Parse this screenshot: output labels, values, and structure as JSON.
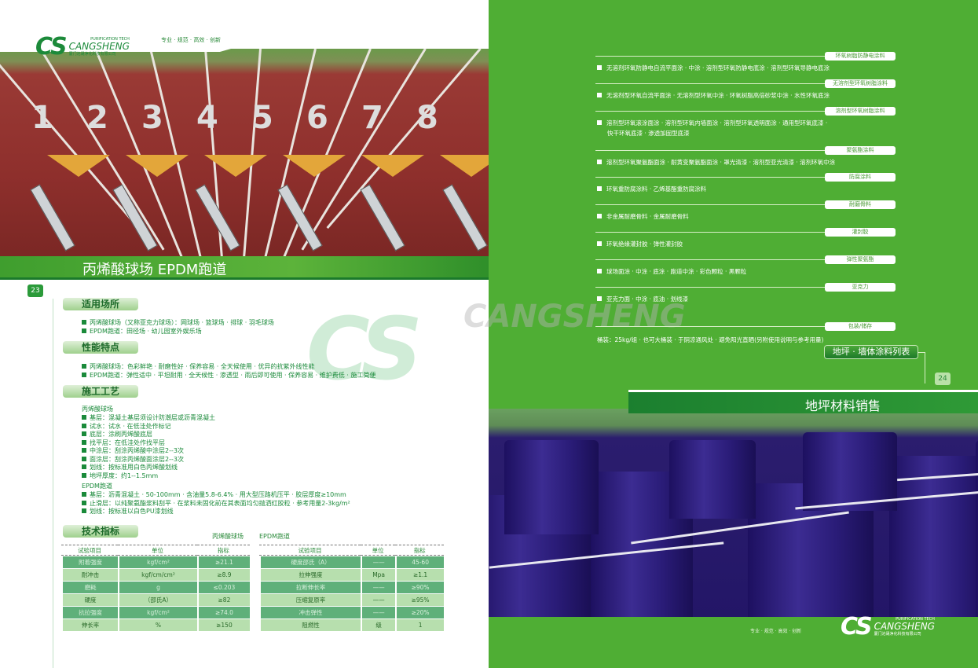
{
  "brand": {
    "logo_mark": "CS",
    "tagline": "PURIFICATION TECH",
    "name": "CANGSHENG",
    "company": "厦门沧晟净化科技有限公司",
    "slogan": "专业 · 规范 · 高效 · 创新"
  },
  "left": {
    "track_numbers": [
      "1",
      "2",
      "3",
      "4",
      "5",
      "6",
      "7",
      "8"
    ],
    "title": "丙烯酸球场 EPDM跑道",
    "page_number": "23",
    "sections": {
      "venues": {
        "title": "适用场所",
        "items": [
          "丙烯酸球场（又称亚克力球场）：网球场 · 篮球场 · 排球 · 羽毛球场",
          "EPDM跑道：田径场 · 幼儿园室外娱乐场"
        ]
      },
      "features": {
        "title": "性能特点",
        "items": [
          "丙烯酸球场：色彩鲜艳 · 耐磨性好 · 保养容易 · 全天候使用 · 优异的抗紫外线性能",
          "EPDM跑道：弹性适中 · 平坦耐用 · 全天候性 · 渗透型 · 雨后即可使用 · 保养容易 · 维护费低 · 施工简便"
        ]
      },
      "process": {
        "title": "施工工艺",
        "acrylic_heading": "丙烯酸球场",
        "acrylic_steps": [
          "基层：混凝土基层须设计防潮层或沥青混凝土",
          "试水：试水 · 在低洼处作标记",
          "底层：涂刷丙烯酸底层",
          "找平层：在低洼处作找平层",
          "中涂层：刮涂丙烯酸中涂层2--3次",
          "面涂层：刮涂丙烯酸面涂层2--3次",
          "划线：按标准用白色丙烯酸划线",
          "地坪厚度：约1--1.5mm"
        ],
        "epdm_heading": "EPDM跑道",
        "epdm_steps": [
          "基层：沥青混凝土 · 50-100mm · 含油量5.8-6.4% · 用大型压路机压平 · 胶层厚度≥10mm",
          "止滑层：以纯聚氨酯浆料刮平 · 在浆料未固化前在其表面均匀抛洒红胶粒 · 参考用量2-3kg/m²",
          "划线：按标准以白色PU漆划线"
        ]
      },
      "specs": {
        "title": "技术指标",
        "acrylic": {
          "caption": "丙烯酸球场",
          "headers": [
            "试验项目",
            "单位",
            "指标"
          ],
          "rows": [
            [
              "附着强度",
              "kgf/cm²",
              "≥21.1"
            ],
            [
              "耐冲击",
              "kgf/cm/cm²",
              "≥8.9"
            ],
            [
              "磨耗",
              "g",
              "≤0.203"
            ],
            [
              "硬度",
              "（邵氏A）",
              "≥82"
            ],
            [
              "抗拉强度",
              "kgf/cm²",
              "≥74.0"
            ],
            [
              "伸长率",
              "%",
              "≥150"
            ]
          ]
        },
        "epdm": {
          "caption": "EPDM跑道",
          "headers": [
            "试验项目",
            "单位",
            "指标"
          ],
          "rows": [
            [
              "硬度邵氏（A）",
              "——",
              "45-60"
            ],
            [
              "拉伸强度",
              "Mpa",
              "≥1.1"
            ],
            [
              "拉断伸长率",
              "——",
              "≥90%"
            ],
            [
              "压缩复原率",
              "——",
              "≥95%"
            ],
            [
              "冲击弹性",
              "——",
              "≥20%"
            ],
            [
              "阻燃性",
              "级",
              "1"
            ]
          ]
        }
      }
    }
  },
  "right": {
    "categories": [
      {
        "label": "环氧树脂防静电涂料",
        "items": [
          "无溶剂环氧防静电自流平面涂 · 中涂 · 溶剂型环氧防静电底涂 · 溶剂型环氧导静电底涂"
        ]
      },
      {
        "label": "无溶剂型环氧树脂涂料",
        "items": [
          "无溶剂型环氧自流平面涂 · 无溶剂型环氧中涂 · 环氧树脂高倍砂浆中涂 · 水性环氧底涂"
        ]
      },
      {
        "label": "溶剂型环氧树脂涂料",
        "items": [
          "溶剂型环氧滚涂面涂 · 溶剂型环氧内墙面涂 · 溶剂型环氧透明面涂 · 通用型环氧底漆 ·",
          "快干环氧底漆 · 渗透加固型底漆"
        ]
      },
      {
        "label": "聚氨酯涂料",
        "items": [
          "溶剂型环氧聚氨酯面涂 · 耐黄变聚氨酯面涂 · 罩光清漆 · 溶剂型亚光清漆 · 溶剂环氧中涂"
        ]
      },
      {
        "label": "防腐涂料",
        "items": [
          "环氧重防腐涂料 · 乙烯基酯重防腐涂料"
        ]
      },
      {
        "label": "耐磨骨料",
        "items": [
          "非金属耐磨骨料 · 金属耐磨骨料"
        ]
      },
      {
        "label": "灌封胶",
        "items": [
          "环氧绝缘灌封胶 · 弹性灌封胶"
        ]
      },
      {
        "label": "弹性聚氨酯",
        "items": [
          "球场面涂 · 中涂 · 底涂 · 跑道中涂 · 彩色颗粒 · 黑颗粒"
        ]
      },
      {
        "label": "亚克力",
        "items": [
          "亚克力面 · 中涂 · 底油 · 划线漆"
        ]
      },
      {
        "label": "包装/储存",
        "items": [
          "桶装：25kg/组 · 也可大桶装 · 于阴凉通风处 · 避免阳光直晒(另附使用说明与参考用量)"
        ]
      }
    ],
    "list_title": "地坪 · 墙体涂料列表",
    "page_number": "24",
    "banner_title": "地坪材料销售"
  },
  "colors": {
    "brand_green": "#1c8a3a",
    "right_bg": "#4fae34",
    "track_red": "#8e2f2c",
    "barrel_purple": "#2b1d78"
  }
}
